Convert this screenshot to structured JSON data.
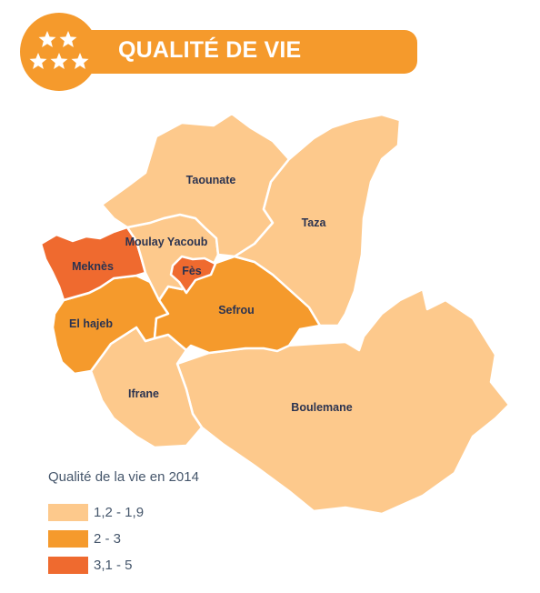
{
  "header": {
    "title": "QUALITÉ DE VIE",
    "badge_icon": "stars-icon",
    "accent_color": "#f59a2c"
  },
  "map": {
    "regions": [
      {
        "name": "Taounate",
        "class": "1,2 - 1,9"
      },
      {
        "name": "Taza",
        "class": "1,2 - 1,9"
      },
      {
        "name": "Moulay Yacoub",
        "class": "1,2 - 1,9"
      },
      {
        "name": "Meknès",
        "class": "3,1 - 5"
      },
      {
        "name": "Fès",
        "class": "3,1 - 5"
      },
      {
        "name": "El hajeb",
        "class": "2 - 3"
      },
      {
        "name": "Sefrou",
        "class": "2 - 3"
      },
      {
        "name": "Ifrane",
        "class": "1,2 - 1,9"
      },
      {
        "name": "Boulemane",
        "class": "1,2 - 1,9"
      }
    ]
  },
  "legend": {
    "title": "Qualité de la vie en 2014",
    "items": [
      {
        "label": "1,2 - 1,9",
        "color": "#fdc98c"
      },
      {
        "label": "2 - 3",
        "color": "#f59a2c"
      },
      {
        "label": "3,1 - 5",
        "color": "#ef6a2f"
      }
    ]
  }
}
